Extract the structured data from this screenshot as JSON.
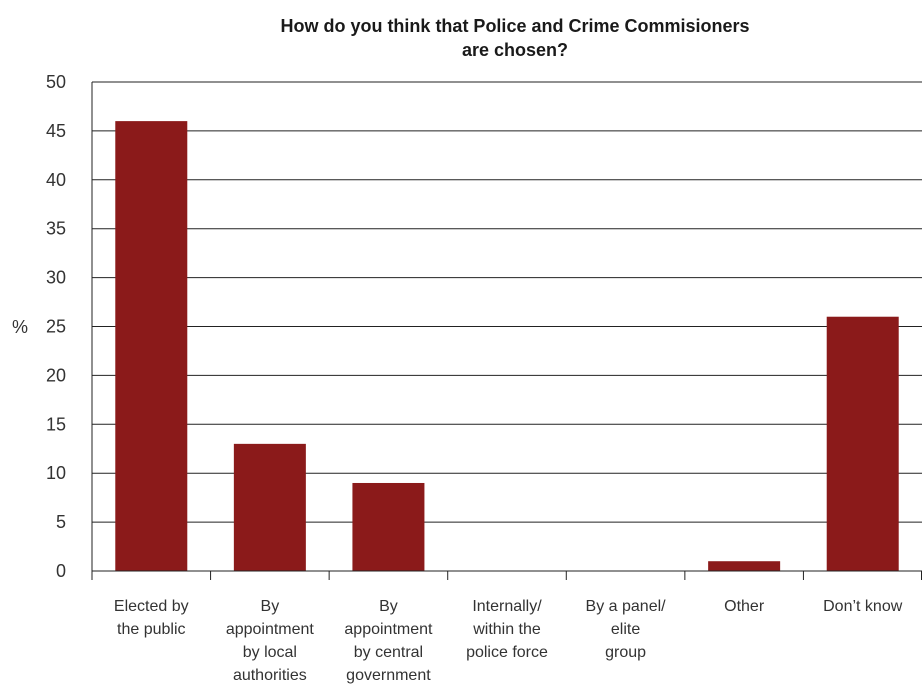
{
  "chart_data": {
    "type": "bar",
    "title_lines": [
      "How do you think that Police and Crime Commisioners",
      "are chosen?"
    ],
    "ylabel": "%",
    "ylim": [
      0,
      50
    ],
    "yticks": [
      0,
      5,
      10,
      15,
      20,
      25,
      30,
      35,
      40,
      45,
      50
    ],
    "grid": true,
    "categories": [
      [
        "Elected by",
        "the public"
      ],
      [
        "By",
        "appointment",
        "by local",
        "authorities"
      ],
      [
        "By",
        "appointment",
        "by central",
        "government"
      ],
      [
        "Internally/",
        "within the",
        "police force"
      ],
      [
        "By a panel/",
        "elite",
        "group"
      ],
      [
        "Other"
      ],
      [
        "Don’t know"
      ]
    ],
    "values": [
      46,
      13,
      9,
      0,
      0,
      1,
      26
    ],
    "bar_color": "#8b1a1a"
  }
}
